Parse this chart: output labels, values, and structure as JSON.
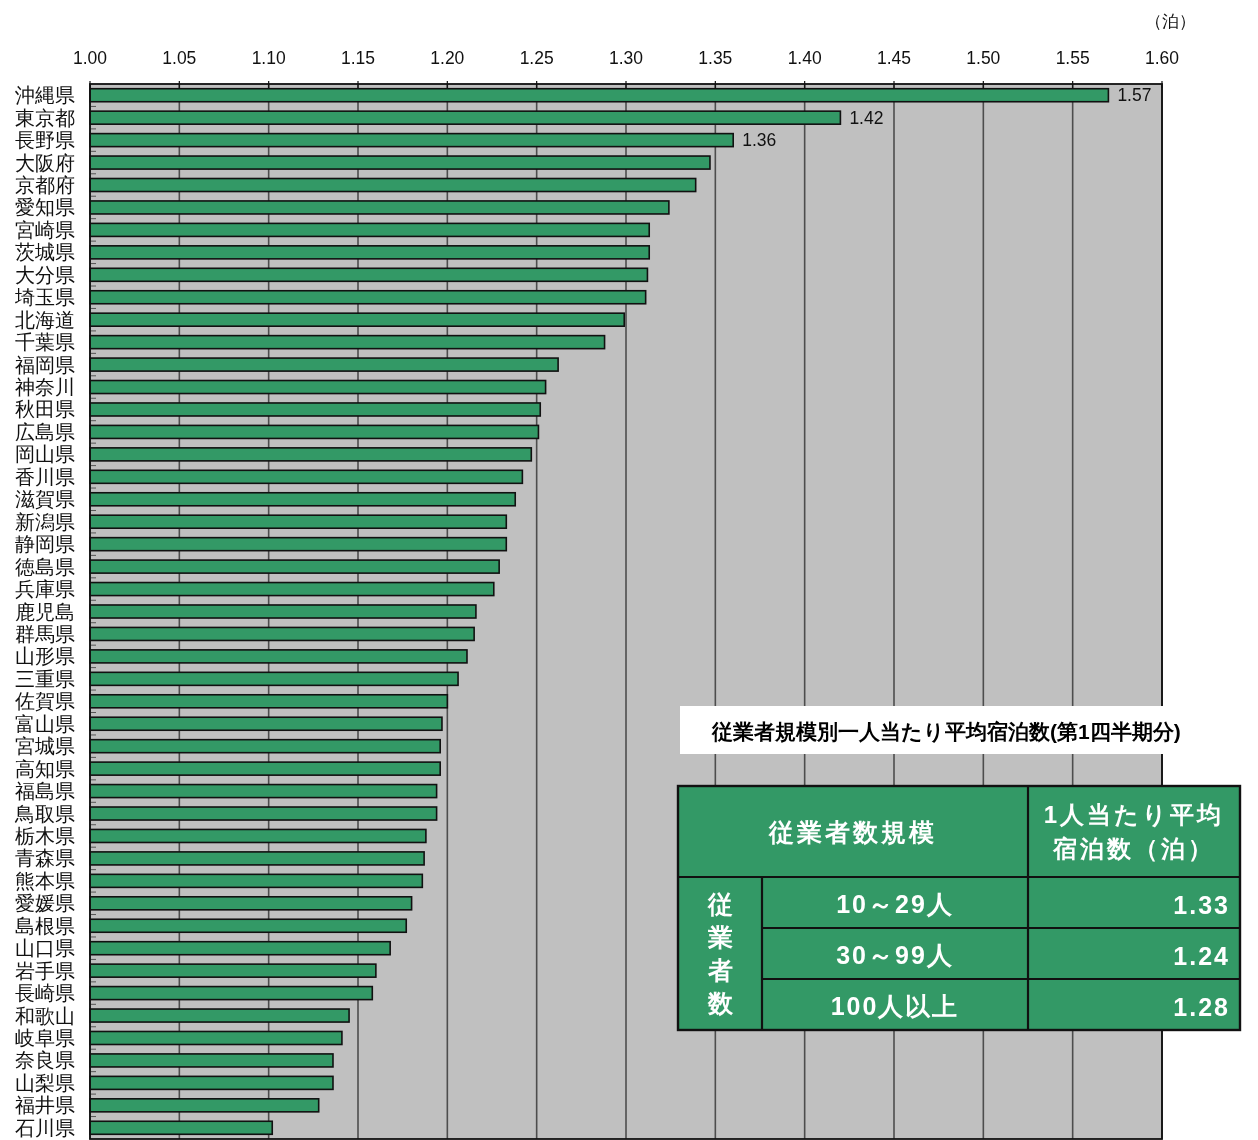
{
  "chart_data": [
    {
      "type": "bar",
      "orientation": "horizontal",
      "xlabel": "（泊）",
      "categories": [
        "沖縄県",
        "東京都",
        "長野県",
        "大阪府",
        "京都府",
        "愛知県",
        "宮崎県",
        "茨城県",
        "大分県",
        "埼玉県",
        "北海道",
        "千葉県",
        "福岡県",
        "神奈川",
        "秋田県",
        "広島県",
        "岡山県",
        "香川県",
        "滋賀県",
        "新潟県",
        "静岡県",
        "徳島県",
        "兵庫県",
        "鹿児島",
        "群馬県",
        "山形県",
        "三重県",
        "佐賀県",
        "富山県",
        "宮城県",
        "高知県",
        "福島県",
        "鳥取県",
        "栃木県",
        "青森県",
        "熊本県",
        "愛媛県",
        "島根県",
        "山口県",
        "岩手県",
        "長崎県",
        "和歌山",
        "岐阜県",
        "奈良県",
        "山梨県",
        "福井県",
        "石川県"
      ],
      "values": [
        1.57,
        1.42,
        1.36,
        1.347,
        1.339,
        1.324,
        1.313,
        1.313,
        1.312,
        1.311,
        1.299,
        1.288,
        1.262,
        1.255,
        1.252,
        1.251,
        1.247,
        1.242,
        1.238,
        1.233,
        1.233,
        1.229,
        1.226,
        1.216,
        1.215,
        1.211,
        1.206,
        1.2,
        1.197,
        1.196,
        1.196,
        1.194,
        1.194,
        1.188,
        1.187,
        1.186,
        1.18,
        1.177,
        1.168,
        1.16,
        1.158,
        1.145,
        1.141,
        1.136,
        1.136,
        1.128,
        1.102
      ],
      "value_labels": [
        "1.57",
        "1.42",
        "1.36",
        null,
        null,
        null,
        null,
        null,
        null,
        null,
        null,
        null,
        null,
        null,
        null,
        null,
        null,
        null,
        null,
        null,
        null,
        null,
        null,
        null,
        null,
        null,
        null,
        null,
        null,
        null,
        null,
        null,
        null,
        null,
        null,
        null,
        null,
        null,
        null,
        null,
        null,
        null,
        null,
        null,
        null,
        null,
        null
      ],
      "color": "#339966",
      "xlim": [
        1.0,
        1.6
      ],
      "xticks": [
        {
          "value": 1.0,
          "label": "1.00"
        },
        {
          "value": 1.05,
          "label": "1.05"
        },
        {
          "value": 1.1,
          "label": "1.10"
        },
        {
          "value": 1.15,
          "label": "1.15"
        },
        {
          "value": 1.2,
          "label": "1.20"
        },
        {
          "value": 1.25,
          "label": "1.25"
        },
        {
          "value": 1.3,
          "label": "1.30"
        },
        {
          "value": 1.35,
          "label": "1.35"
        },
        {
          "value": 1.4,
          "label": "1.40"
        },
        {
          "value": 1.45,
          "label": "1.45"
        },
        {
          "value": 1.5,
          "label": "1.50"
        },
        {
          "value": 1.55,
          "label": "1.55"
        },
        {
          "value": 1.6,
          "label": "1.60"
        }
      ],
      "grid": "x"
    },
    {
      "type": "other",
      "title": "従業者規模別一人当たり平均宿泊数(第1四半期分)",
      "xlabel": "従業者数規模",
      "ylabel": "1人当たり平均宿泊数（泊）",
      "annotations": [
        "従業者数"
      ],
      "categories": [
        "10～29人",
        "30～99人",
        "100人以上"
      ],
      "values": [
        1.33,
        1.24,
        1.28
      ],
      "data_labels": true,
      "color": "#339966"
    }
  ]
}
